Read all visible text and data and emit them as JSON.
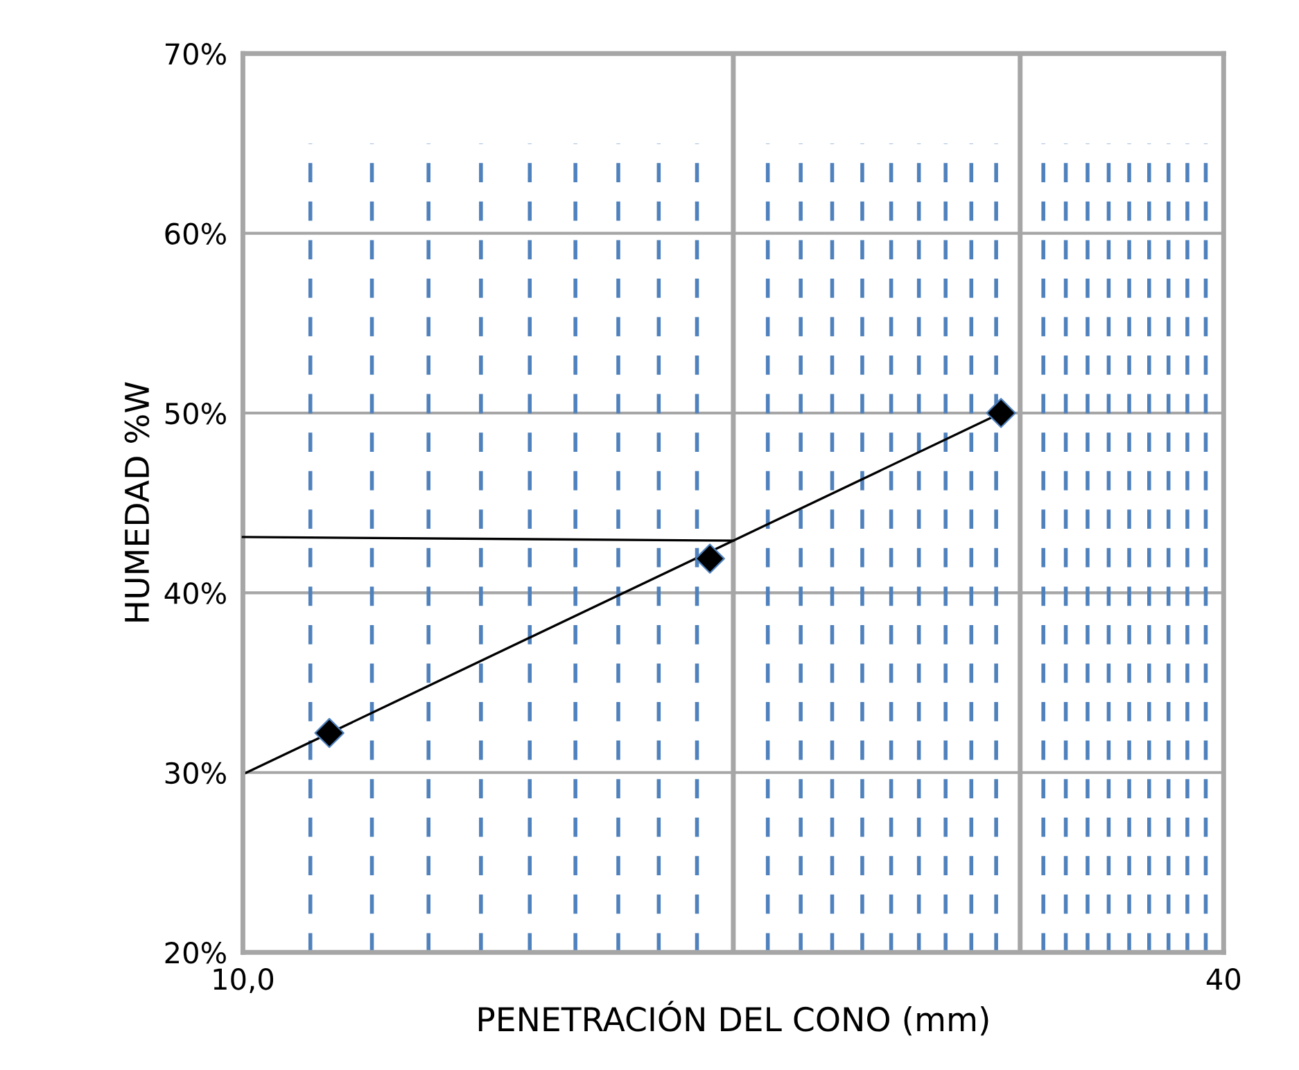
{
  "chart_data": {
    "type": "scatter",
    "xlabel": "PENETRACIÓN DEL CONO (mm)",
    "ylabel": "HUMEDAD %W",
    "log": "x",
    "xlim": [
      10,
      40
    ],
    "xticks": [
      {
        "value": 10,
        "label": "10,0"
      },
      {
        "value": 11,
        "label": null
      },
      {
        "value": 12,
        "label": null
      },
      {
        "value": 13,
        "label": null
      },
      {
        "value": 14,
        "label": null
      },
      {
        "value": 15,
        "label": null
      },
      {
        "value": 16,
        "label": null
      },
      {
        "value": 17,
        "label": null
      },
      {
        "value": 18,
        "label": null
      },
      {
        "value": 19,
        "label": null
      },
      {
        "value": 21,
        "label": null
      },
      {
        "value": 22,
        "label": null
      },
      {
        "value": 23,
        "label": null
      },
      {
        "value": 24,
        "label": null
      },
      {
        "value": 25,
        "label": null
      },
      {
        "value": 26,
        "label": null
      },
      {
        "value": 27,
        "label": null
      },
      {
        "value": 28,
        "label": null
      },
      {
        "value": 29,
        "label": null
      },
      {
        "value": 31,
        "label": null
      },
      {
        "value": 32,
        "label": null
      },
      {
        "value": 33,
        "label": null
      },
      {
        "value": 34,
        "label": null
      },
      {
        "value": 35,
        "label": null
      },
      {
        "value": 36,
        "label": null
      },
      {
        "value": 37,
        "label": null
      },
      {
        "value": 38,
        "label": null
      },
      {
        "value": 39,
        "label": null
      },
      40
    ],
    "ylim": [
      20,
      70
    ],
    "yticks": [
      {
        "value": 20,
        "label": "20%"
      },
      {
        "value": 30,
        "label": "30%"
      },
      {
        "value": 40,
        "label": "40%"
      },
      {
        "value": 50,
        "label": "50%"
      },
      {
        "value": 60,
        "label": "60%"
      },
      {
        "value": 70,
        "label": "70%"
      }
    ],
    "grid": true,
    "legend": false,
    "ref_lines": [
      {
        "axis": "x",
        "value": 20,
        "color": "#a6a6a6"
      },
      {
        "axis": "x",
        "value": 30,
        "color": "#a6a6a6"
      }
    ],
    "series": [
      {
        "type": "line",
        "color": "#000000",
        "line_style": "solid",
        "marker": "none",
        "x": [
          10,
          29.2
        ],
        "values": [
          29.9,
          50.0
        ]
      },
      {
        "type": "line",
        "color": "#000000",
        "line_style": "solid",
        "marker": "none",
        "x": [
          10,
          20
        ],
        "values": [
          43.1,
          42.9
        ]
      },
      {
        "color": "#000000",
        "marker": "diamond",
        "x": [
          11.3,
          19.35,
          29.2
        ],
        "values": [
          32.2,
          41.9,
          50.0
        ]
      }
    ]
  }
}
